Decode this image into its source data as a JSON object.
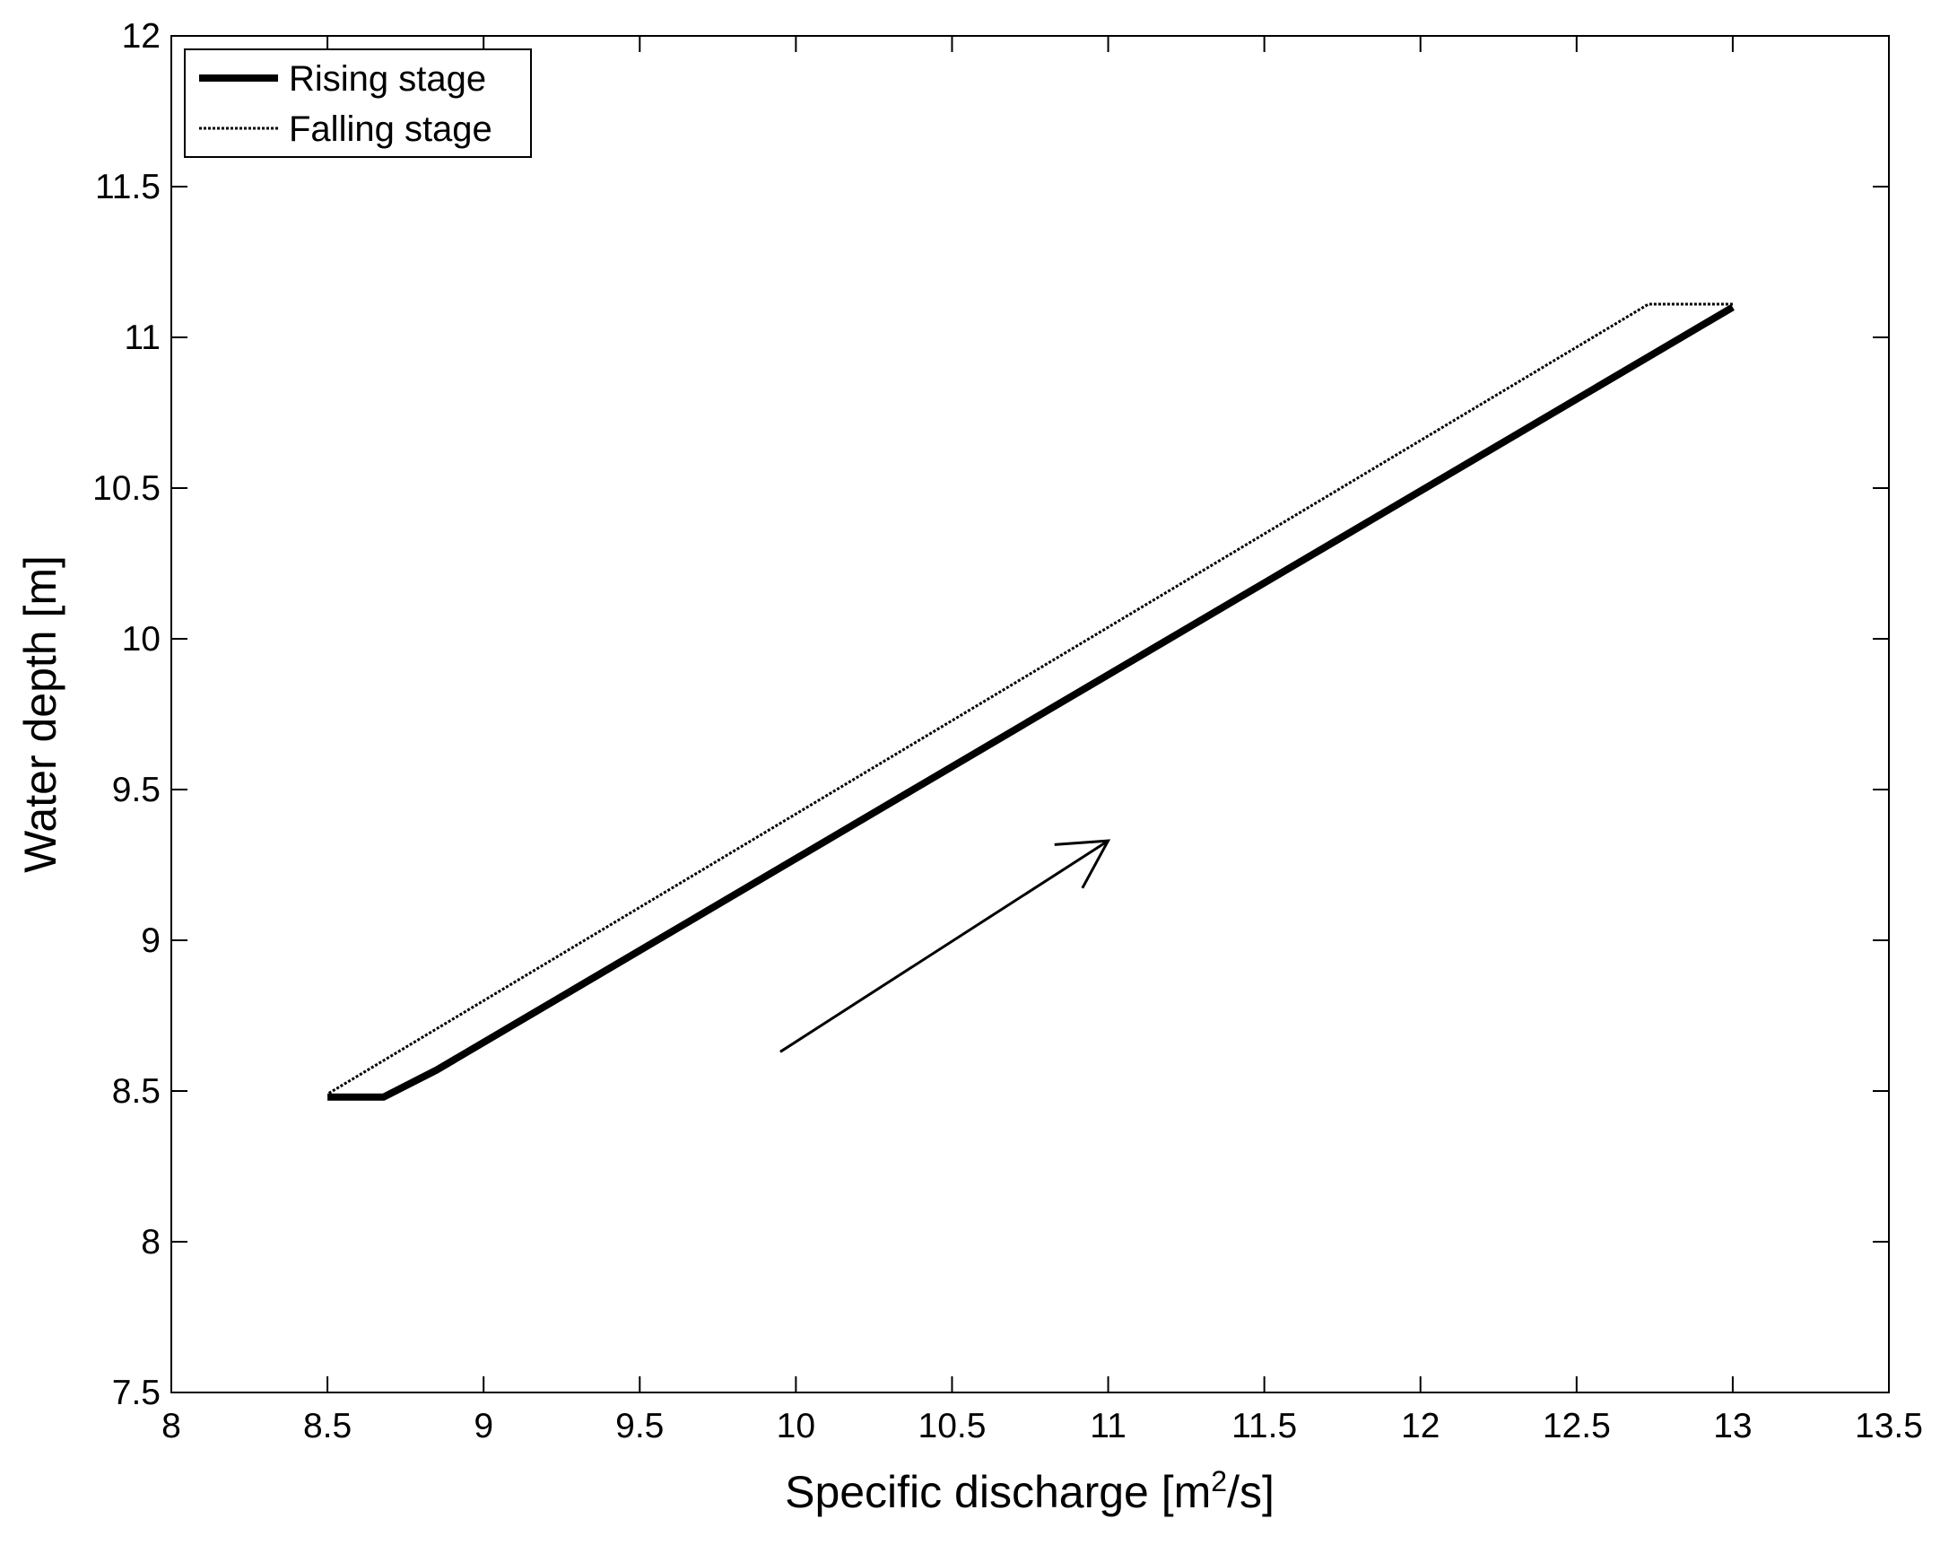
{
  "chart_data": {
    "type": "line",
    "xlabel_main": "Specific discharge [m",
    "xlabel_sup": "2",
    "xlabel_tail": "/s]",
    "ylabel": "Water depth [m]",
    "xlim": [
      8,
      13.5
    ],
    "ylim": [
      7.5,
      12
    ],
    "xticks": [
      8,
      8.5,
      9,
      9.5,
      10,
      10.5,
      11,
      11.5,
      12,
      12.5,
      13,
      13.5
    ],
    "xtick_labels": [
      "8",
      "8.5",
      "9",
      "9.5",
      "10",
      "10.5",
      "11",
      "11.5",
      "12",
      "12.5",
      "13",
      "13.5"
    ],
    "yticks": [
      7.5,
      8,
      8.5,
      9,
      9.5,
      10,
      10.5,
      11,
      11.5,
      12
    ],
    "ytick_labels": [
      "7.5",
      "8",
      "8.5",
      "9",
      "9.5",
      "10",
      "10.5",
      "11",
      "11.5",
      "12"
    ],
    "grid": false,
    "legend_position": "top-left",
    "series": [
      {
        "name": "Rising stage",
        "style": "solid-thick",
        "color": "#000000",
        "x": [
          8.5,
          8.68,
          8.85,
          13.0
        ],
        "y": [
          8.48,
          8.48,
          8.57,
          11.1
        ]
      },
      {
        "name": "Falling stage",
        "style": "dotted-thin",
        "color": "#000000",
        "x": [
          13.0,
          12.73,
          8.5
        ],
        "y": [
          11.11,
          11.11,
          8.49
        ]
      }
    ],
    "annotations": [
      {
        "type": "arrow",
        "direction": "rising",
        "x_from": 9.95,
        "y_from": 8.63,
        "x_to": 11.0,
        "y_to": 9.33
      }
    ]
  }
}
